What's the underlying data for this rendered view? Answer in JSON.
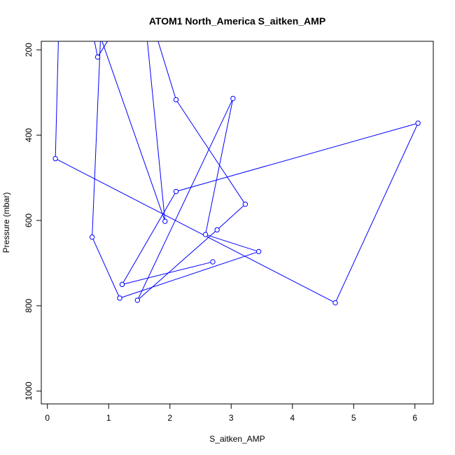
{
  "chart_data": {
    "type": "line",
    "title": "ATOM1 North_America S_aitken_AMP",
    "xlabel": "S_aitken_AMP",
    "ylabel": "Pressure (mbar)",
    "xlim": [
      -0.1,
      6.3
    ],
    "ylim": [
      1030,
      180
    ],
    "y_reversed": true,
    "x_ticks": [
      0,
      1,
      2,
      3,
      4,
      5,
      6
    ],
    "y_ticks": [
      200,
      400,
      600,
      800,
      1000
    ],
    "series": [
      {
        "color": "#0000ff",
        "marker": "open-circle",
        "points": [
          {
            "x": 2.7,
            "y": 697
          },
          {
            "x": 1.22,
            "y": 750
          },
          {
            "x": 2.1,
            "y": 532
          },
          {
            "x": 6.05,
            "y": 372
          },
          {
            "x": 4.7,
            "y": 793
          },
          {
            "x": 0.13,
            "y": 455
          },
          {
            "x": 0.2,
            "y": 60
          },
          {
            "x": 1.5,
            "y": 60
          },
          {
            "x": 0.82,
            "y": 217
          },
          {
            "x": 0.6,
            "y": 60
          },
          {
            "x": 1.92,
            "y": 602
          },
          {
            "x": 1.55,
            "y": 60
          },
          {
            "x": 2.1,
            "y": 317
          },
          {
            "x": 3.23,
            "y": 562
          },
          {
            "x": 2.77,
            "y": 622
          },
          {
            "x": 1.47,
            "y": 787
          },
          {
            "x": 3.03,
            "y": 314
          },
          {
            "x": 2.58,
            "y": 633
          },
          {
            "x": 3.45,
            "y": 673
          },
          {
            "x": 1.18,
            "y": 782
          },
          {
            "x": 0.73,
            "y": 639
          },
          {
            "x": 0.9,
            "y": 60
          }
        ],
        "markers_hidden": [
          6,
          7,
          9,
          11,
          21
        ]
      }
    ]
  }
}
